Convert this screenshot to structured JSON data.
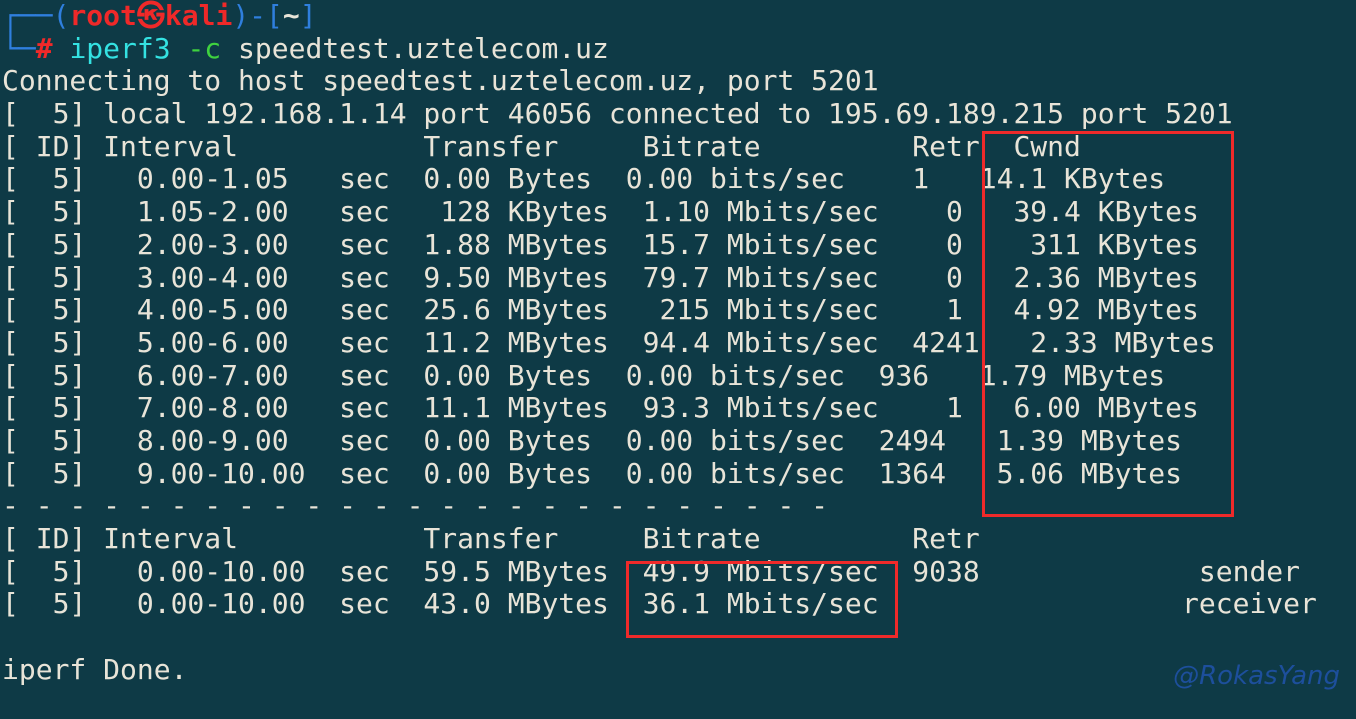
{
  "terminal": {
    "colors": {
      "background": "#0E3A46",
      "foreground": "#E8E4D8",
      "prompt-blue": "#2F7FDE",
      "prompt-red": "#EF2929",
      "command-cyan": "#34E2E2",
      "option-green": "#3FD23F",
      "annotation-red": "#EF2A2A",
      "watermark-blue": "#1D4F9C"
    },
    "prompt": {
      "user_host": "root㉿kali",
      "path": "~",
      "command": "iperf3 -c speedtest.uztelecom.uz"
    },
    "lines": [
      {
        "name": "prompt-line-1",
        "segments": [
          {
            "t": "┌──(",
            "c": "blue"
          },
          {
            "t": "root㉿kali",
            "c": "red"
          },
          {
            "t": ")-[",
            "c": "blue"
          },
          {
            "t": "~",
            "c": "fgb"
          },
          {
            "t": "]",
            "c": "blue"
          }
        ]
      },
      {
        "name": "prompt-line-2",
        "segments": [
          {
            "t": "└─",
            "c": "blue"
          },
          {
            "t": "#",
            "c": "red"
          },
          {
            "t": " ",
            "c": "fg"
          },
          {
            "t": "iperf3",
            "c": "cyan"
          },
          {
            "t": " ",
            "c": "fg"
          },
          {
            "t": "-c",
            "c": "green"
          },
          {
            "t": " speedtest.uztelecom.uz",
            "c": "fg"
          }
        ]
      },
      {
        "name": "connect-message",
        "text": "Connecting to host speedtest.uztelecom.uz, port 5201"
      },
      {
        "name": "socket-message",
        "text": "[  5] local 192.168.1.14 port 46056 connected to 195.69.189.215 port 5201"
      },
      {
        "name": "interval-table-header",
        "text": "[ ID] Interval           Transfer     Bitrate         Retr  Cwnd"
      },
      {
        "name": "interval-row",
        "text": "[  5]   0.00-1.05   sec  0.00 Bytes  0.00 bits/sec    1   14.1 KBytes"
      },
      {
        "name": "interval-row",
        "text": "[  5]   1.05-2.00   sec   128 KBytes  1.10 Mbits/sec    0   39.4 KBytes"
      },
      {
        "name": "interval-row",
        "text": "[  5]   2.00-3.00   sec  1.88 MBytes  15.7 Mbits/sec    0    311 KBytes"
      },
      {
        "name": "interval-row",
        "text": "[  5]   3.00-4.00   sec  9.50 MBytes  79.7 Mbits/sec    0   2.36 MBytes"
      },
      {
        "name": "interval-row",
        "text": "[  5]   4.00-5.00   sec  25.6 MBytes   215 Mbits/sec    1   4.92 MBytes"
      },
      {
        "name": "interval-row",
        "text": "[  5]   5.00-6.00   sec  11.2 MBytes  94.4 Mbits/sec  4241   2.33 MBytes"
      },
      {
        "name": "interval-row",
        "text": "[  5]   6.00-7.00   sec  0.00 Bytes  0.00 bits/sec  936   1.79 MBytes"
      },
      {
        "name": "interval-row",
        "text": "[  5]   7.00-8.00   sec  11.1 MBytes  93.3 Mbits/sec    1   6.00 MBytes"
      },
      {
        "name": "interval-row",
        "text": "[  5]   8.00-9.00   sec  0.00 Bytes  0.00 bits/sec  2494   1.39 MBytes"
      },
      {
        "name": "interval-row",
        "text": "[  5]   9.00-10.00  sec  0.00 Bytes  0.00 bits/sec  1364   5.06 MBytes"
      },
      {
        "name": "separator-line",
        "text": "- - - - - - - - - - - - - - - - - - - - - - - - -"
      },
      {
        "name": "summary-table-header",
        "text": "[ ID] Interval           Transfer     Bitrate         Retr"
      },
      {
        "name": "summary-sender-row",
        "text": "[  5]   0.00-10.00  sec  59.5 MBytes  49.9 Mbits/sec  9038             sender"
      },
      {
        "name": "summary-receiver-row",
        "text": "[  5]   0.00-10.00  sec  43.0 MBytes  36.1 Mbits/sec                  receiver"
      },
      {
        "name": "blank-line",
        "text": ""
      },
      {
        "name": "done-message",
        "text": "iperf Done."
      },
      {
        "name": "blank-line",
        "text": ""
      }
    ]
  },
  "watermark": {
    "text": "@RokasYang"
  }
}
